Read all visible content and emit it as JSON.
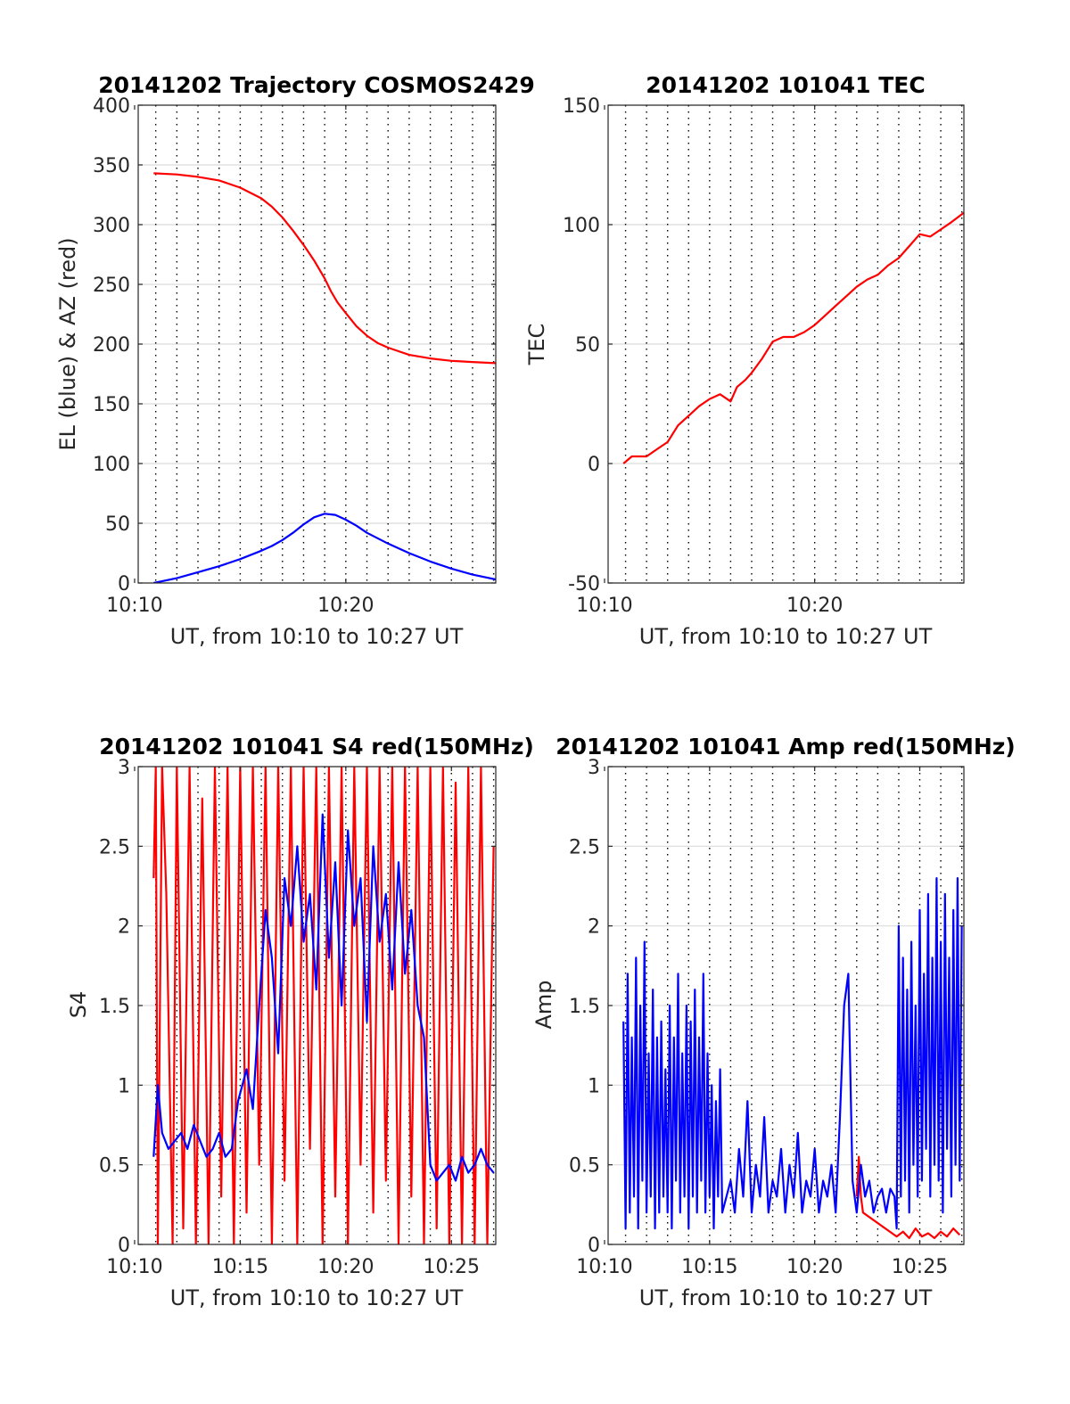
{
  "chart_data": [
    {
      "id": "trajectory",
      "type": "line",
      "title": "20141202 Trajectory COSMOS2429",
      "xlabel": "UT, from 10:10 to 10:27 UT",
      "ylabel": "EL (blue) & AZ (red)",
      "xlim": [
        10.17,
        27.1
      ],
      "ylim": [
        0,
        400
      ],
      "yticks": [
        0,
        50,
        100,
        150,
        200,
        250,
        300,
        350,
        400
      ],
      "xticks": [
        {
          "v": 10,
          "label": "10:10"
        },
        {
          "v": 20,
          "label": "10:20"
        }
      ],
      "grid_x_dotted_every_min": 1,
      "colors": {
        "az": "#ff0000",
        "el": "#0000ff"
      },
      "series": [
        {
          "key": "az",
          "color": "#ff0000",
          "x": [
            10.9,
            12,
            13,
            14,
            15,
            16,
            16.5,
            17,
            17.5,
            18,
            18.5,
            19,
            19.3,
            19.6,
            20,
            20.5,
            21,
            21.5,
            22,
            22.5,
            23,
            24,
            25,
            26,
            27.1
          ],
          "y": [
            343,
            342,
            340,
            337,
            331,
            322,
            315,
            306,
            295,
            283,
            270,
            255,
            244,
            235,
            226,
            215,
            207,
            201,
            197,
            194,
            191,
            188,
            186,
            185,
            184
          ]
        },
        {
          "key": "el",
          "color": "#0000ff",
          "x": [
            10.9,
            12,
            13,
            14,
            15,
            16,
            16.5,
            17,
            17.5,
            18,
            18.5,
            19,
            19.5,
            20,
            20.5,
            21,
            22,
            23,
            24,
            25,
            26,
            27.1
          ],
          "y": [
            0,
            4,
            9,
            14,
            20,
            27,
            31,
            36,
            42,
            49,
            55,
            58,
            57,
            53,
            48,
            42,
            33,
            25,
            18,
            12,
            7,
            3
          ]
        }
      ]
    },
    {
      "id": "tec",
      "type": "line",
      "title": "20141202 101041 TEC",
      "xlabel": "UT, from 10:10 to 10:27 UT",
      "ylabel": "TEC",
      "xlim": [
        10.17,
        27.1
      ],
      "ylim": [
        -50,
        150
      ],
      "yticks": [
        -50,
        0,
        50,
        100,
        150
      ],
      "xticks": [
        {
          "v": 10,
          "label": "10:10"
        },
        {
          "v": 20,
          "label": "10:20"
        }
      ],
      "grid_x_dotted_every_min": 1,
      "series": [
        {
          "key": "tec",
          "color": "#ff0000",
          "x": [
            10.9,
            11.3,
            12,
            12.5,
            13,
            13.5,
            14,
            14.5,
            15,
            15.5,
            16,
            16.3,
            16.7,
            17,
            17.5,
            18,
            18.5,
            19,
            19.5,
            20,
            20.5,
            21,
            21.5,
            22,
            22.5,
            23,
            23.5,
            24,
            24.5,
            25,
            25.5,
            26,
            26.5,
            27.1
          ],
          "y": [
            0,
            3,
            3,
            6,
            9,
            16,
            20,
            24,
            27,
            29,
            26,
            32,
            35,
            38,
            44,
            51,
            53,
            53,
            55,
            58,
            62,
            66,
            70,
            74,
            77,
            79,
            83,
            86,
            91,
            96,
            95,
            98,
            101,
            105
          ]
        }
      ]
    },
    {
      "id": "s4",
      "type": "line",
      "title": "20141202 101041 S4 red(150MHz)",
      "xlabel": "UT, from 10:10 to 10:27 UT",
      "ylabel": "S4",
      "xlim": [
        10.17,
        27.1
      ],
      "ylim": [
        0,
        3
      ],
      "yticks": [
        0,
        0.5,
        1,
        1.5,
        2,
        2.5,
        3
      ],
      "xticks": [
        {
          "v": 10,
          "label": "10:10"
        },
        {
          "v": 15,
          "label": "10:15"
        },
        {
          "v": 20,
          "label": "10:20"
        },
        {
          "v": 25,
          "label": "10:25"
        }
      ],
      "grid_x_dotted_every_min": 1,
      "series": [
        {
          "key": "s4_red",
          "color": "#ff0000",
          "x": [
            10.9,
            11.0,
            11.1,
            11.3,
            11.5,
            11.8,
            12.0,
            12.3,
            12.6,
            12.9,
            13.2,
            13.5,
            13.8,
            14.1,
            14.4,
            14.7,
            15.0,
            15.3,
            15.6,
            15.9,
            16.2,
            16.5,
            16.8,
            17.1,
            17.4,
            17.7,
            18.0,
            18.3,
            18.6,
            18.9,
            19.2,
            19.5,
            19.8,
            20.1,
            20.4,
            20.7,
            21.0,
            21.3,
            21.6,
            21.9,
            22.2,
            22.5,
            22.8,
            23.1,
            23.4,
            23.7,
            24.0,
            24.3,
            24.6,
            24.9,
            25.2,
            25.5,
            25.8,
            26.1,
            26.4,
            26.7,
            27.0
          ],
          "y": [
            2.3,
            3,
            0,
            3,
            2.2,
            0,
            3,
            0.1,
            3,
            0,
            2.8,
            0,
            3,
            0.3,
            3,
            0,
            3,
            0.2,
            3,
            0.5,
            3,
            0,
            3,
            0.4,
            3,
            0,
            3,
            0.6,
            3,
            0,
            3,
            0.3,
            3,
            0,
            3,
            0.5,
            3,
            0.2,
            3,
            0.4,
            3,
            0,
            3,
            0.3,
            3,
            0,
            3,
            0.1,
            3,
            0,
            2.9,
            0,
            3,
            0,
            3,
            0,
            2.5
          ]
        },
        {
          "key": "s4_blue",
          "color": "#0000ff",
          "x": [
            10.9,
            11.1,
            11.3,
            11.6,
            11.9,
            12.2,
            12.5,
            12.8,
            13.1,
            13.4,
            13.7,
            14.0,
            14.3,
            14.6,
            14.9,
            15.1,
            15.3,
            15.6,
            15.9,
            16.2,
            16.5,
            16.8,
            17.1,
            17.4,
            17.7,
            18.0,
            18.3,
            18.6,
            18.9,
            19.2,
            19.5,
            19.8,
            20.1,
            20.4,
            20.7,
            21.0,
            21.3,
            21.6,
            21.9,
            22.2,
            22.5,
            22.8,
            23.1,
            23.4,
            23.7,
            24.0,
            24.3,
            24.6,
            24.9,
            25.2,
            25.5,
            25.8,
            26.1,
            26.4,
            26.7,
            27.0
          ],
          "y": [
            0.55,
            1.0,
            0.7,
            0.6,
            0.65,
            0.7,
            0.6,
            0.75,
            0.65,
            0.55,
            0.6,
            0.7,
            0.55,
            0.6,
            0.9,
            1.0,
            1.1,
            0.85,
            1.5,
            2.1,
            1.8,
            1.2,
            2.3,
            2.0,
            2.5,
            1.9,
            2.2,
            1.6,
            2.7,
            1.8,
            2.4,
            1.5,
            2.6,
            2.0,
            2.3,
            1.4,
            2.5,
            1.9,
            2.2,
            1.6,
            2.4,
            1.7,
            2.1,
            1.5,
            1.3,
            0.5,
            0.4,
            0.45,
            0.5,
            0.4,
            0.55,
            0.45,
            0.5,
            0.6,
            0.5,
            0.45
          ]
        }
      ]
    },
    {
      "id": "amp",
      "type": "line",
      "title": "20141202 101041 Amp red(150MHz)",
      "xlabel": "UT, from 10:10 to 10:27 UT",
      "ylabel": "Amp",
      "xlim": [
        10.17,
        27.1
      ],
      "ylim": [
        0,
        3
      ],
      "yticks": [
        0,
        0.5,
        1,
        1.5,
        2,
        2.5,
        3
      ],
      "xticks": [
        {
          "v": 10,
          "label": "10:10"
        },
        {
          "v": 15,
          "label": "10:15"
        },
        {
          "v": 20,
          "label": "10:20"
        },
        {
          "v": 25,
          "label": "10:25"
        }
      ],
      "grid_x_dotted_every_min": 1,
      "series": [
        {
          "key": "amp_red",
          "color": "#ff0000",
          "x": [
            22.0,
            22.1,
            22.2,
            22.3,
            23.9,
            24.2,
            24.5,
            24.8,
            25.1,
            25.4,
            25.7,
            26.0,
            26.3,
            26.6,
            26.9
          ],
          "y": [
            0.3,
            0.55,
            0.3,
            0.2,
            0.05,
            0.08,
            0.04,
            0.1,
            0.05,
            0.07,
            0.04,
            0.08,
            0.05,
            0.1,
            0.06
          ]
        },
        {
          "key": "amp_blue",
          "color": "#0000ff",
          "x": [
            10.9,
            11.0,
            11.1,
            11.2,
            11.3,
            11.4,
            11.5,
            11.6,
            11.7,
            11.8,
            11.9,
            12.0,
            12.1,
            12.2,
            12.3,
            12.4,
            12.5,
            12.6,
            12.7,
            12.8,
            12.9,
            13.0,
            13.1,
            13.2,
            13.3,
            13.4,
            13.5,
            13.6,
            13.7,
            13.8,
            13.9,
            14.0,
            14.1,
            14.2,
            14.3,
            14.4,
            14.5,
            14.6,
            14.7,
            14.8,
            14.9,
            15.0,
            15.1,
            15.2,
            15.3,
            15.4,
            15.5,
            15.6,
            15.8,
            16.0,
            16.2,
            16.4,
            16.6,
            16.8,
            17.0,
            17.2,
            17.4,
            17.6,
            17.8,
            18.0,
            18.2,
            18.4,
            18.6,
            18.8,
            19.0,
            19.2,
            19.4,
            19.6,
            19.8,
            20.0,
            20.2,
            20.4,
            20.6,
            20.8,
            21.0,
            21.2,
            21.4,
            21.6,
            21.8,
            22.0,
            22.2,
            22.4,
            22.6,
            22.8,
            23.0,
            23.2,
            23.4,
            23.6,
            23.8,
            23.9,
            24.0,
            24.1,
            24.2,
            24.3,
            24.4,
            24.5,
            24.6,
            24.7,
            24.8,
            24.9,
            25.0,
            25.1,
            25.2,
            25.3,
            25.4,
            25.5,
            25.6,
            25.7,
            25.8,
            25.9,
            26.0,
            26.1,
            26.2,
            26.3,
            26.4,
            26.5,
            26.6,
            26.7,
            26.8,
            26.9,
            27.0
          ],
          "y": [
            1.4,
            0.1,
            1.7,
            0.2,
            1.3,
            0.3,
            1.8,
            0.1,
            1.5,
            0.4,
            1.9,
            0.2,
            1.2,
            0.3,
            1.6,
            0.1,
            1.3,
            0.2,
            1.4,
            0.3,
            1.1,
            0.2,
            1.5,
            0.1,
            1.3,
            0.4,
            1.7,
            0.2,
            1.2,
            0.3,
            1.5,
            0.1,
            1.4,
            0.3,
            1.6,
            0.2,
            1.3,
            0.4,
            1.7,
            0.2,
            1.2,
            0.3,
            1.0,
            0.1,
            0.9,
            0.3,
            1.1,
            0.2,
            0.3,
            0.4,
            0.2,
            0.6,
            0.3,
            0.9,
            0.2,
            0.5,
            0.3,
            0.8,
            0.2,
            0.4,
            0.3,
            0.6,
            0.2,
            0.5,
            0.3,
            0.7,
            0.2,
            0.4,
            0.3,
            0.6,
            0.2,
            0.4,
            0.3,
            0.5,
            0.2,
            0.8,
            1.5,
            1.7,
            0.4,
            0.2,
            0.5,
            0.3,
            0.4,
            0.2,
            0.3,
            0.35,
            0.2,
            0.35,
            0.3,
            0.1,
            2.0,
            0.3,
            1.8,
            0.4,
            1.6,
            0.2,
            1.9,
            0.5,
            1.5,
            0.3,
            2.1,
            0.4,
            1.7,
            0.6,
            2.2,
            0.3,
            1.8,
            0.5,
            2.3,
            0.4,
            1.9,
            0.2,
            2.2,
            0.6,
            1.8,
            0.3,
            2.1,
            0.5,
            2.3,
            0.4,
            2.0
          ]
        }
      ]
    }
  ]
}
